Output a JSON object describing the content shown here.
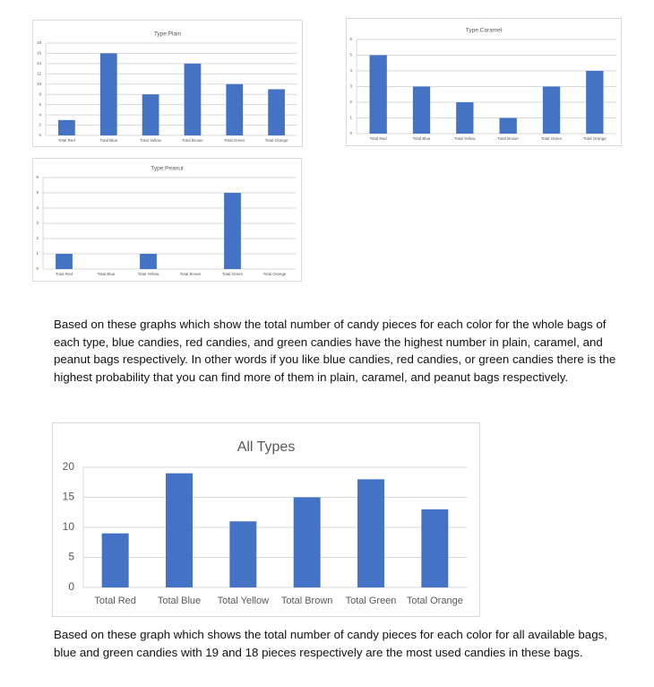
{
  "chart_data": [
    {
      "type": "bar",
      "title": "Type:Plain",
      "categories": [
        "Total Red",
        "Total Blue",
        "Total Yellow",
        "Total Brown",
        "Total Green",
        "Total Orange"
      ],
      "values": [
        3,
        16,
        8,
        14,
        10,
        9
      ],
      "ylim": [
        0,
        18
      ],
      "yticks": [
        0,
        2,
        4,
        6,
        8,
        10,
        12,
        14,
        16,
        18
      ],
      "grid": true,
      "color": "#4472c4"
    },
    {
      "type": "bar",
      "title": "Type:Caramel",
      "categories": [
        "Total Red",
        "Total Blue",
        "Total Yellow",
        "Total Brown",
        "Total Green",
        "Total Orange"
      ],
      "values": [
        5,
        3,
        2,
        1,
        3,
        4
      ],
      "ylim": [
        0,
        6
      ],
      "yticks": [
        0,
        1,
        2,
        3,
        4,
        5,
        6
      ],
      "grid": true,
      "color": "#4472c4"
    },
    {
      "type": "bar",
      "title": "Type:Peanut",
      "categories": [
        "Total Red",
        "Total Blue",
        "Total Yellow",
        "Total Brown",
        "Total Green",
        "Total Orange"
      ],
      "values": [
        1,
        0,
        1,
        0,
        5,
        0
      ],
      "ylim": [
        0,
        6
      ],
      "yticks": [
        0,
        1,
        2,
        3,
        4,
        5,
        6
      ],
      "grid": true,
      "color": "#4472c4"
    },
    {
      "type": "bar",
      "title": "All Types",
      "categories": [
        "Total Red",
        "Total Blue",
        "Total Yellow",
        "Total Brown",
        "Total Green",
        "Total Orange"
      ],
      "values": [
        9,
        19,
        11,
        15,
        18,
        13
      ],
      "ylim": [
        0,
        20
      ],
      "yticks": [
        0,
        5,
        10,
        15,
        20
      ],
      "grid": true,
      "color": "#4472c4"
    }
  ],
  "text": {
    "para1": "Based on these graphs which show the total number of candy pieces for each color for the whole bags of each type, blue candies, red candies, and green candies have the highest number in plain, caramel, and peanut bags respectively. In other words if you like blue candies, red candies, or green candies there is the highest probability that you can find more of them in plain, caramel, and peanut bags respectively.",
    "para2": "Based on these graph which shows the total number of candy pieces for each color for all available bags, blue and green candies with 19 and 18 pieces respectively are the most used candies in these bags."
  }
}
